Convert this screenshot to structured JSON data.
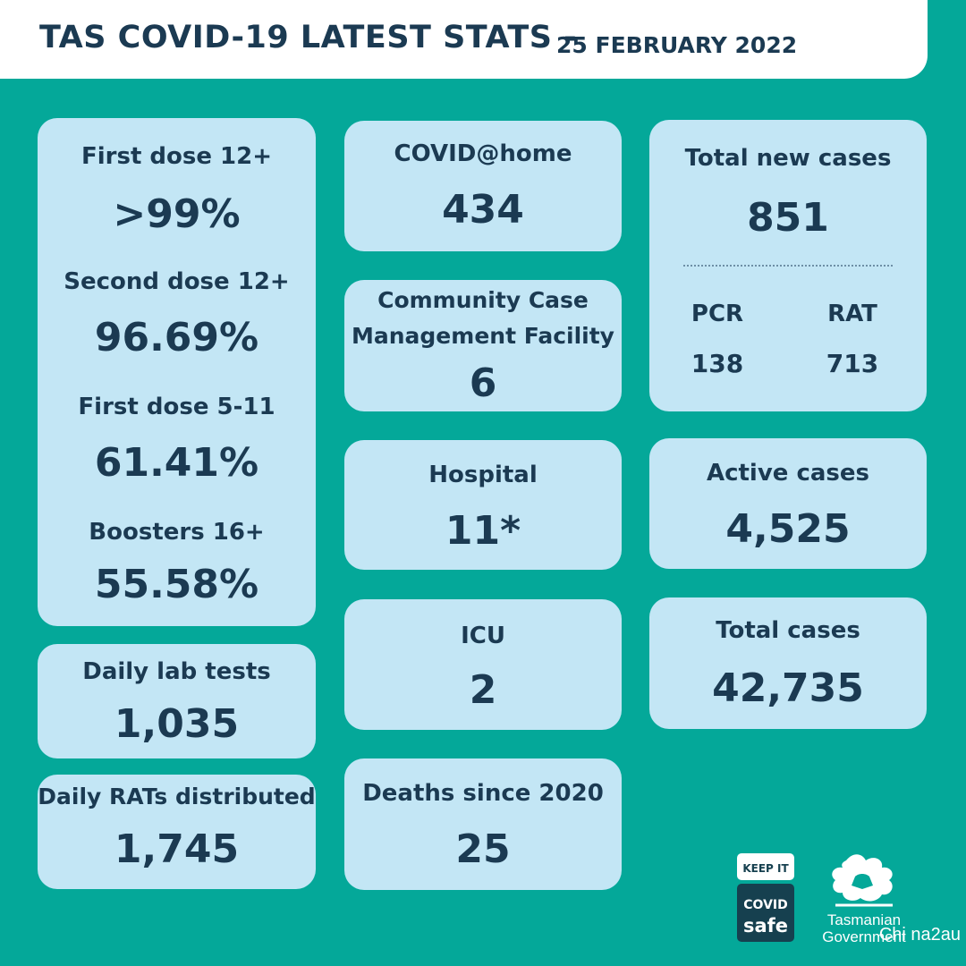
{
  "header": {
    "title": "TAS COVID-19 LATEST STATS -",
    "date": "25 FEBRUARY 2022"
  },
  "vaccination": {
    "first_dose_12_label": "First dose 12+",
    "first_dose_12_value": ">99%",
    "second_dose_12_label": "Second dose 12+",
    "second_dose_12_value": "96.69%",
    "first_dose_5_11_label": "First dose 5-11",
    "first_dose_5_11_value": "61.41%",
    "boosters_16_label": "Boosters 16+",
    "boosters_16_value": "55.58%"
  },
  "daily_lab_tests": {
    "label": "Daily lab tests",
    "value": "1,035"
  },
  "daily_rats": {
    "label": "Daily RATs distributed",
    "value": "1,745"
  },
  "covid_home": {
    "label": "COVID@home",
    "value": "434"
  },
  "community_facility": {
    "label_line1": "Community Case",
    "label_line2": "Management Facility",
    "value": "6"
  },
  "hospital": {
    "label": "Hospital",
    "value": "11*"
  },
  "icu": {
    "label": "ICU",
    "value": "2"
  },
  "deaths": {
    "label": "Deaths since 2020",
    "value": "25"
  },
  "total_new_cases": {
    "label": "Total new cases",
    "value": "851",
    "pcr_label": "PCR",
    "pcr_value": "138",
    "rat_label": "RAT",
    "rat_value": "713"
  },
  "active_cases": {
    "label": "Active cases",
    "value": "4,525"
  },
  "total_cases": {
    "label": "Total cases",
    "value": "42,735"
  },
  "logos": {
    "covidsafe_line1": "KEEP IT",
    "covidsafe_line2": "COVID",
    "covidsafe_line3": "safe",
    "tas_line1": "Tasmanian",
    "tas_line2": "Government"
  },
  "watermark": "Chi na2au"
}
